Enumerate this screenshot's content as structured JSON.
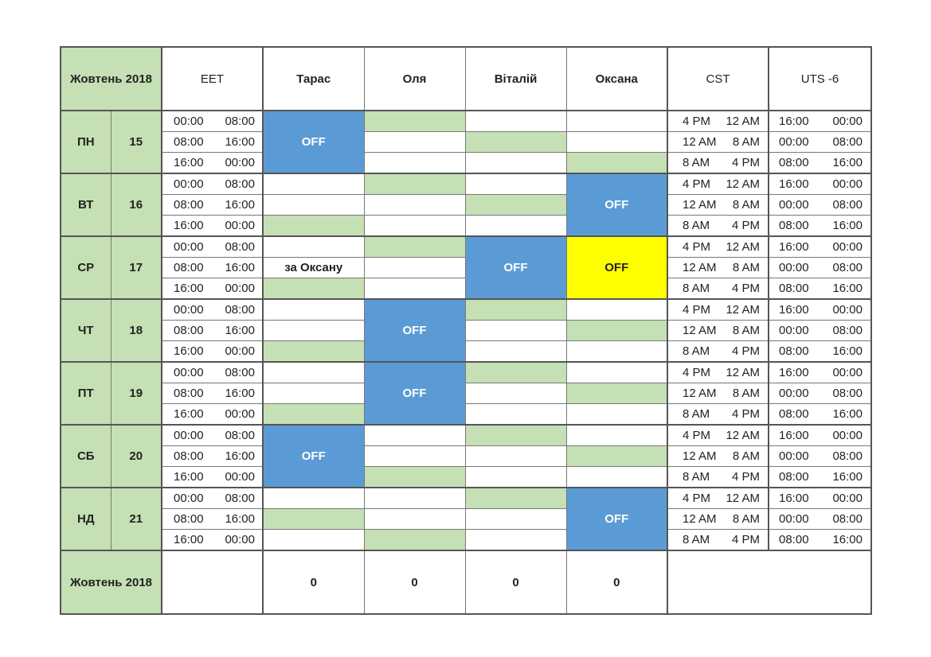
{
  "header": {
    "month_label": "Жовтень 2018",
    "tz_left": "EET",
    "people": [
      "Тарас",
      "Оля",
      "Віталій",
      "Оксана"
    ],
    "tz_cst": "CST",
    "tz_uts": "UTS -6"
  },
  "eet_slots": [
    [
      "00:00",
      "08:00"
    ],
    [
      "08:00",
      "16:00"
    ],
    [
      "16:00",
      "00:00"
    ]
  ],
  "cst_slots": [
    [
      "4 PM",
      "12 AM"
    ],
    [
      "12 AM",
      "8 AM"
    ],
    [
      "8 AM",
      "4 PM"
    ]
  ],
  "uts_slots": [
    [
      "16:00",
      "00:00"
    ],
    [
      "00:00",
      "08:00"
    ],
    [
      "08:00",
      "16:00"
    ]
  ],
  "days": [
    {
      "dow": "ПН",
      "num": "15",
      "taras": {
        "off": true,
        "label": "OFF"
      },
      "cells": [
        [
          "",
          "g",
          "",
          ""
        ],
        [
          "",
          "",
          "g",
          ""
        ],
        [
          "",
          "",
          "",
          "g"
        ]
      ]
    },
    {
      "dow": "ВТ",
      "num": "16",
      "oksana": {
        "off": true,
        "label": "OFF"
      },
      "cells": [
        [
          "",
          "g",
          "",
          ""
        ],
        [
          "",
          "",
          "g",
          ""
        ],
        [
          "g",
          "",
          "",
          ""
        ]
      ]
    },
    {
      "dow": "СР",
      "num": "17",
      "taras_note": "за Оксану",
      "vitaliy": {
        "off": true,
        "label": "OFF"
      },
      "oksana": {
        "off": true,
        "label": "OFF"
      },
      "cells": [
        [
          "",
          "g",
          "",
          ""
        ],
        [
          "",
          "",
          "",
          ""
        ],
        [
          "g",
          "",
          "",
          ""
        ]
      ]
    },
    {
      "dow": "ЧТ",
      "num": "18",
      "olya": {
        "off": true,
        "label": "OFF"
      },
      "cells": [
        [
          "",
          "",
          "g",
          ""
        ],
        [
          "",
          "",
          "",
          "g"
        ],
        [
          "g",
          "",
          "",
          ""
        ]
      ]
    },
    {
      "dow": "ПТ",
      "num": "19",
      "olya": {
        "off": true,
        "label": "OFF"
      },
      "cells": [
        [
          "",
          "",
          "g",
          ""
        ],
        [
          "",
          "",
          "",
          "g"
        ],
        [
          "g",
          "",
          "",
          ""
        ]
      ]
    },
    {
      "dow": "СБ",
      "num": "20",
      "taras": {
        "off": true,
        "label": "OFF"
      },
      "cells": [
        [
          "",
          "",
          "g",
          ""
        ],
        [
          "",
          "",
          "",
          "g"
        ],
        [
          "",
          "g",
          "",
          ""
        ]
      ]
    },
    {
      "dow": "НД",
      "num": "21",
      "oksana": {
        "off": true,
        "label": "OFF"
      },
      "cells": [
        [
          "",
          "",
          "g",
          ""
        ],
        [
          "g",
          "",
          "",
          ""
        ],
        [
          "",
          "g",
          "",
          ""
        ]
      ]
    }
  ],
  "summary": {
    "label": "Жовтень 2018",
    "totals": [
      "0",
      "0",
      "0",
      "0"
    ]
  },
  "colors": {
    "green": "#c5e0b4",
    "off_blue": "#5b9bd5",
    "highlight_yellow": "#ffff00"
  }
}
